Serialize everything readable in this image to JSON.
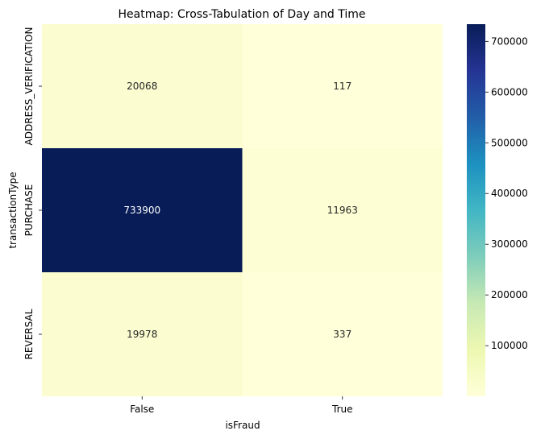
{
  "chart_data": {
    "type": "heatmap",
    "title": "Heatmap: Cross-Tabulation of Day and Time",
    "xlabel": "isFraud",
    "ylabel": "transactionType",
    "x_categories": [
      "False",
      "True"
    ],
    "y_categories": [
      "ADDRESS_VERIFICATION",
      "PURCHASE",
      "REVERSAL"
    ],
    "values": [
      [
        20068,
        117
      ],
      [
        733900,
        11963
      ],
      [
        19978,
        337
      ]
    ],
    "colormap": "YlGnBu",
    "colorbar": {
      "range": [
        117,
        733900
      ],
      "ticks": [
        100000,
        200000,
        300000,
        400000,
        500000,
        600000,
        700000
      ],
      "tick_labels": [
        "100000",
        "200000",
        "300000",
        "400000",
        "500000",
        "600000",
        "700000"
      ]
    },
    "colors": {
      "low": "#ffffd9",
      "high": "#081d58",
      "text_dark": "#262626",
      "text_light": "#ffffff"
    }
  }
}
